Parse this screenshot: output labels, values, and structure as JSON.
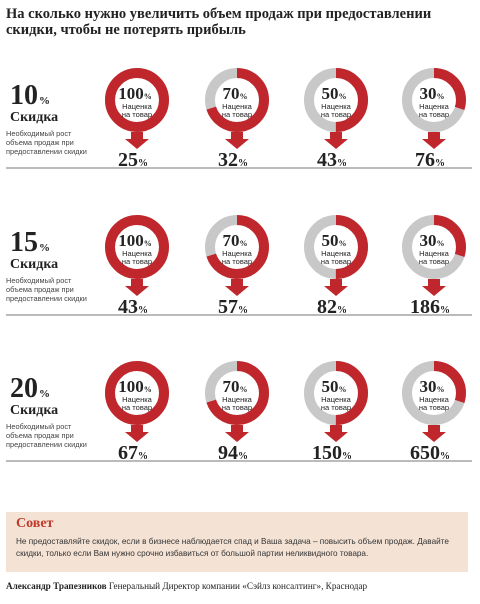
{
  "header": {
    "title": "На сколько нужно увеличить объем продаж при предоставлении скидки, чтобы не потерять прибыль"
  },
  "labels": {
    "discount_word": "Скидка",
    "markup_line1": "Наценка",
    "markup_line2": "на товар",
    "required_growth": "Необходимый рост объема продаж при предоставлении скидки",
    "percent_sign": "%"
  },
  "advice": {
    "title": "Совет",
    "text": "Не предоставляйте скидок, если в бизнесе наблюдается спад и Ваша задача – повысить объем продаж. Давайте скидки, только если Вам нужно срочно избавиться от большой партии неликвидного товара."
  },
  "credit": {
    "author": "Александр Трапезников",
    "position": "Генеральный Директор компании «Сэйлз консалтинг», Краснодар"
  },
  "colors": {
    "accent": "#c0272d",
    "ring_grey": "#c8c8c8",
    "dark": "#222222"
  },
  "chart_data": {
    "type": "table",
    "title": "На сколько нужно увеличить объем продаж при предоставлении скидки, чтобы не потерять прибыль",
    "columns_label": "Наценка на товар",
    "rows_label": "Скидка",
    "markups": [
      100,
      70,
      50,
      30
    ],
    "discounts": [
      10,
      15,
      20
    ],
    "required_growth": [
      [
        25,
        32,
        43,
        76
      ],
      [
        43,
        57,
        82,
        186
      ],
      [
        67,
        94,
        150,
        650
      ]
    ],
    "unit": "%"
  }
}
